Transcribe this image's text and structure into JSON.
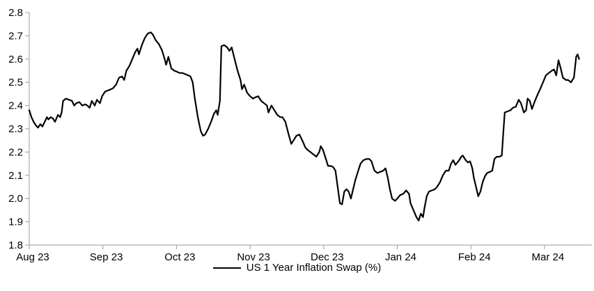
{
  "chart_data": {
    "type": "line",
    "title": "",
    "legend": {
      "label": "US 1 Year Inflation Swap (%)",
      "position": "bottom-center"
    },
    "grid": false,
    "colors": {
      "line": "#000000",
      "axis": "#999999",
      "text": "#000000",
      "background": "#ffffff"
    },
    "x_axis": {
      "unit": "months since Aug 2023 (fractional)",
      "tick_labels": [
        "Aug 23",
        "Sep 23",
        "Oct 23",
        "Nov 23",
        "Dec 23",
        "Jan 24",
        "Feb 24",
        "Mar 24"
      ],
      "tick_positions": [
        0,
        1,
        2,
        3,
        4,
        5,
        6,
        7
      ],
      "range": [
        0,
        7.65
      ]
    },
    "y_axis": {
      "min": 1.8,
      "max": 2.8,
      "step": 0.1,
      "tick_labels": [
        "2.8",
        "2.7",
        "2.6",
        "2.5",
        "2.4",
        "2.3",
        "2.2",
        "2.1",
        "2.0",
        "1.9",
        "1.8"
      ]
    },
    "series": [
      {
        "name": "US 1 Year Inflation Swap (%)",
        "color": "#000000",
        "points": [
          [
            0.0,
            2.38
          ],
          [
            0.03,
            2.35
          ],
          [
            0.06,
            2.33
          ],
          [
            0.09,
            2.315
          ],
          [
            0.12,
            2.305
          ],
          [
            0.15,
            2.32
          ],
          [
            0.18,
            2.31
          ],
          [
            0.21,
            2.33
          ],
          [
            0.24,
            2.35
          ],
          [
            0.26,
            2.34
          ],
          [
            0.29,
            2.35
          ],
          [
            0.32,
            2.345
          ],
          [
            0.35,
            2.33
          ],
          [
            0.39,
            2.36
          ],
          [
            0.42,
            2.35
          ],
          [
            0.44,
            2.37
          ],
          [
            0.46,
            2.42
          ],
          [
            0.5,
            2.43
          ],
          [
            0.54,
            2.425
          ],
          [
            0.58,
            2.42
          ],
          [
            0.61,
            2.4
          ],
          [
            0.64,
            2.41
          ],
          [
            0.68,
            2.415
          ],
          [
            0.72,
            2.4
          ],
          [
            0.76,
            2.405
          ],
          [
            0.79,
            2.4
          ],
          [
            0.82,
            2.39
          ],
          [
            0.85,
            2.42
          ],
          [
            0.89,
            2.4
          ],
          [
            0.92,
            2.425
          ],
          [
            0.96,
            2.41
          ],
          [
            0.99,
            2.44
          ],
          [
            1.03,
            2.46
          ],
          [
            1.07,
            2.465
          ],
          [
            1.11,
            2.47
          ],
          [
            1.14,
            2.475
          ],
          [
            1.18,
            2.49
          ],
          [
            1.22,
            2.52
          ],
          [
            1.26,
            2.525
          ],
          [
            1.29,
            2.51
          ],
          [
            1.32,
            2.55
          ],
          [
            1.36,
            2.57
          ],
          [
            1.4,
            2.6
          ],
          [
            1.44,
            2.63
          ],
          [
            1.47,
            2.645
          ],
          [
            1.49,
            2.62
          ],
          [
            1.53,
            2.66
          ],
          [
            1.57,
            2.69
          ],
          [
            1.61,
            2.71
          ],
          [
            1.65,
            2.715
          ],
          [
            1.68,
            2.705
          ],
          [
            1.72,
            2.68
          ],
          [
            1.76,
            2.665
          ],
          [
            1.8,
            2.64
          ],
          [
            1.84,
            2.6
          ],
          [
            1.86,
            2.575
          ],
          [
            1.89,
            2.61
          ],
          [
            1.93,
            2.56
          ],
          [
            1.97,
            2.55
          ],
          [
            2.01,
            2.545
          ],
          [
            2.04,
            2.54
          ],
          [
            2.08,
            2.54
          ],
          [
            2.12,
            2.535
          ],
          [
            2.16,
            2.53
          ],
          [
            2.19,
            2.525
          ],
          [
            2.22,
            2.5
          ],
          [
            2.25,
            2.43
          ],
          [
            2.29,
            2.35
          ],
          [
            2.33,
            2.29
          ],
          [
            2.36,
            2.27
          ],
          [
            2.39,
            2.275
          ],
          [
            2.43,
            2.3
          ],
          [
            2.47,
            2.33
          ],
          [
            2.51,
            2.365
          ],
          [
            2.54,
            2.38
          ],
          [
            2.56,
            2.36
          ],
          [
            2.59,
            2.42
          ],
          [
            2.61,
            2.655
          ],
          [
            2.65,
            2.66
          ],
          [
            2.69,
            2.65
          ],
          [
            2.72,
            2.635
          ],
          [
            2.75,
            2.65
          ],
          [
            2.79,
            2.6
          ],
          [
            2.83,
            2.55
          ],
          [
            2.87,
            2.51
          ],
          [
            2.89,
            2.47
          ],
          [
            2.92,
            2.49
          ],
          [
            2.96,
            2.455
          ],
          [
            3.0,
            2.44
          ],
          [
            3.04,
            2.43
          ],
          [
            3.07,
            2.435
          ],
          [
            3.11,
            2.44
          ],
          [
            3.15,
            2.42
          ],
          [
            3.19,
            2.41
          ],
          [
            3.23,
            2.4
          ],
          [
            3.25,
            2.37
          ],
          [
            3.29,
            2.4
          ],
          [
            3.33,
            2.38
          ],
          [
            3.37,
            2.36
          ],
          [
            3.41,
            2.35
          ],
          [
            3.44,
            2.35
          ],
          [
            3.48,
            2.33
          ],
          [
            3.52,
            2.28
          ],
          [
            3.56,
            2.235
          ],
          [
            3.59,
            2.25
          ],
          [
            3.63,
            2.27
          ],
          [
            3.67,
            2.275
          ],
          [
            3.71,
            2.25
          ],
          [
            3.75,
            2.22
          ],
          [
            3.78,
            2.21
          ],
          [
            3.82,
            2.2
          ],
          [
            3.86,
            2.19
          ],
          [
            3.9,
            2.18
          ],
          [
            3.94,
            2.2
          ],
          [
            3.96,
            2.225
          ],
          [
            3.99,
            2.21
          ],
          [
            4.03,
            2.17
          ],
          [
            4.06,
            2.14
          ],
          [
            4.1,
            2.14
          ],
          [
            4.13,
            2.135
          ],
          [
            4.16,
            2.12
          ],
          [
            4.19,
            2.05
          ],
          [
            4.22,
            1.98
          ],
          [
            4.25,
            1.975
          ],
          [
            4.28,
            2.03
          ],
          [
            4.31,
            2.04
          ],
          [
            4.34,
            2.03
          ],
          [
            4.37,
            2.0
          ],
          [
            4.4,
            2.04
          ],
          [
            4.43,
            2.08
          ],
          [
            4.47,
            2.12
          ],
          [
            4.5,
            2.15
          ],
          [
            4.54,
            2.165
          ],
          [
            4.58,
            2.17
          ],
          [
            4.62,
            2.17
          ],
          [
            4.65,
            2.16
          ],
          [
            4.69,
            2.12
          ],
          [
            4.73,
            2.11
          ],
          [
            4.77,
            2.115
          ],
          [
            4.81,
            2.12
          ],
          [
            4.84,
            2.13
          ],
          [
            4.87,
            2.09
          ],
          [
            4.9,
            2.04
          ],
          [
            4.93,
            2.0
          ],
          [
            4.97,
            1.99
          ],
          [
            5.0,
            2.0
          ],
          [
            5.04,
            2.015
          ],
          [
            5.08,
            2.02
          ],
          [
            5.12,
            2.035
          ],
          [
            5.16,
            2.02
          ],
          [
            5.18,
            1.98
          ],
          [
            5.22,
            1.95
          ],
          [
            5.26,
            1.92
          ],
          [
            5.29,
            1.905
          ],
          [
            5.32,
            1.935
          ],
          [
            5.35,
            1.92
          ],
          [
            5.37,
            1.96
          ],
          [
            5.4,
            2.01
          ],
          [
            5.43,
            2.03
          ],
          [
            5.47,
            2.035
          ],
          [
            5.51,
            2.04
          ],
          [
            5.54,
            2.05
          ],
          [
            5.58,
            2.07
          ],
          [
            5.62,
            2.1
          ],
          [
            5.66,
            2.12
          ],
          [
            5.7,
            2.12
          ],
          [
            5.73,
            2.15
          ],
          [
            5.76,
            2.165
          ],
          [
            5.79,
            2.145
          ],
          [
            5.83,
            2.16
          ],
          [
            5.87,
            2.18
          ],
          [
            5.89,
            2.185
          ],
          [
            5.93,
            2.165
          ],
          [
            5.96,
            2.155
          ],
          [
            5.99,
            2.16
          ],
          [
            6.02,
            2.13
          ],
          [
            6.04,
            2.09
          ],
          [
            6.07,
            2.05
          ],
          [
            6.1,
            2.01
          ],
          [
            6.13,
            2.03
          ],
          [
            6.16,
            2.07
          ],
          [
            6.19,
            2.095
          ],
          [
            6.22,
            2.11
          ],
          [
            6.26,
            2.115
          ],
          [
            6.29,
            2.12
          ],
          [
            6.32,
            2.17
          ],
          [
            6.35,
            2.18
          ],
          [
            6.39,
            2.18
          ],
          [
            6.42,
            2.185
          ],
          [
            6.44,
            2.28
          ],
          [
            6.46,
            2.37
          ],
          [
            6.5,
            2.375
          ],
          [
            6.54,
            2.38
          ],
          [
            6.57,
            2.39
          ],
          [
            6.61,
            2.395
          ],
          [
            6.65,
            2.425
          ],
          [
            6.68,
            2.41
          ],
          [
            6.72,
            2.37
          ],
          [
            6.75,
            2.38
          ],
          [
            6.77,
            2.43
          ],
          [
            6.8,
            2.42
          ],
          [
            6.83,
            2.385
          ],
          [
            6.87,
            2.42
          ],
          [
            6.91,
            2.45
          ],
          [
            6.94,
            2.47
          ],
          [
            6.98,
            2.5
          ],
          [
            7.02,
            2.53
          ],
          [
            7.06,
            2.54
          ],
          [
            7.1,
            2.55
          ],
          [
            7.13,
            2.555
          ],
          [
            7.16,
            2.53
          ],
          [
            7.19,
            2.595
          ],
          [
            7.22,
            2.56
          ],
          [
            7.25,
            2.52
          ],
          [
            7.29,
            2.51
          ],
          [
            7.32,
            2.51
          ],
          [
            7.36,
            2.5
          ],
          [
            7.4,
            2.52
          ],
          [
            7.43,
            2.61
          ],
          [
            7.45,
            2.62
          ],
          [
            7.47,
            2.6
          ]
        ]
      }
    ]
  }
}
